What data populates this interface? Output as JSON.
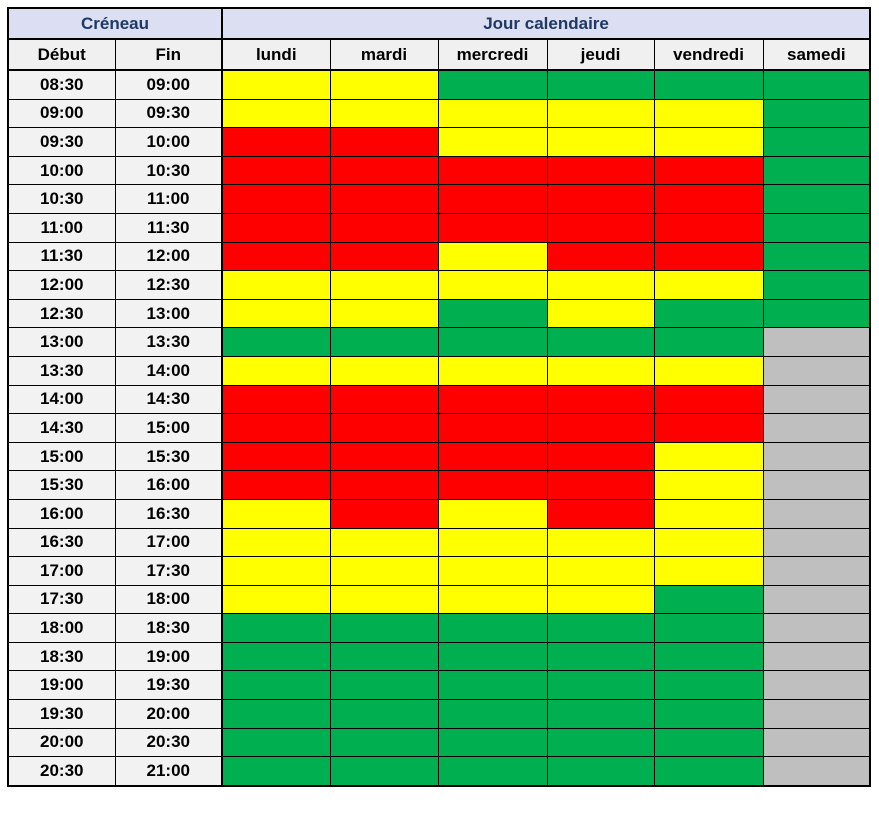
{
  "header": {
    "creneau": "Créneau",
    "jour_calendaire": "Jour calendaire",
    "debut": "Début",
    "fin": "Fin",
    "days": [
      "lundi",
      "mardi",
      "mercredi",
      "jeudi",
      "vendredi",
      "samedi"
    ]
  },
  "colors": {
    "yellow": "#FFFF00",
    "red": "#FF0000",
    "green": "#00B050",
    "gray": "#BFBFBF",
    "header_band_bg": "#DBDFF1",
    "header_band_text": "#1F3864",
    "subheader_bg": "#F0F0F0",
    "time_cell_bg": "#F2F2F2",
    "grid_border": "#000000"
  },
  "chart_data": {
    "type": "heatmap",
    "title": "Créneau / Jour calendaire availability table",
    "x_categories": [
      "lundi",
      "mardi",
      "mercredi",
      "jeudi",
      "vendredi",
      "samedi"
    ],
    "y_axis_label": "Créneau (Début–Fin)",
    "legend_colors": {
      "yellow": "#FFFF00",
      "red": "#FF0000",
      "green": "#00B050",
      "gray": "#BFBFBF"
    },
    "rows": [
      {
        "debut": "08:30",
        "fin": "09:00",
        "cells": [
          "yellow",
          "yellow",
          "green",
          "green",
          "green",
          "green"
        ]
      },
      {
        "debut": "09:00",
        "fin": "09:30",
        "cells": [
          "yellow",
          "yellow",
          "yellow",
          "yellow",
          "yellow",
          "green"
        ]
      },
      {
        "debut": "09:30",
        "fin": "10:00",
        "cells": [
          "red",
          "red",
          "yellow",
          "yellow",
          "yellow",
          "green"
        ]
      },
      {
        "debut": "10:00",
        "fin": "10:30",
        "cells": [
          "red",
          "red",
          "red",
          "red",
          "red",
          "green"
        ]
      },
      {
        "debut": "10:30",
        "fin": "11:00",
        "cells": [
          "red",
          "red",
          "red",
          "red",
          "red",
          "green"
        ]
      },
      {
        "debut": "11:00",
        "fin": "11:30",
        "cells": [
          "red",
          "red",
          "red",
          "red",
          "red",
          "green"
        ]
      },
      {
        "debut": "11:30",
        "fin": "12:00",
        "cells": [
          "red",
          "red",
          "yellow",
          "red",
          "red",
          "green"
        ]
      },
      {
        "debut": "12:00",
        "fin": "12:30",
        "cells": [
          "yellow",
          "yellow",
          "yellow",
          "yellow",
          "yellow",
          "green"
        ]
      },
      {
        "debut": "12:30",
        "fin": "13:00",
        "cells": [
          "yellow",
          "yellow",
          "green",
          "yellow",
          "green",
          "green"
        ]
      },
      {
        "debut": "13:00",
        "fin": "13:30",
        "cells": [
          "green",
          "green",
          "green",
          "green",
          "green",
          "gray"
        ]
      },
      {
        "debut": "13:30",
        "fin": "14:00",
        "cells": [
          "yellow",
          "yellow",
          "yellow",
          "yellow",
          "yellow",
          "gray"
        ]
      },
      {
        "debut": "14:00",
        "fin": "14:30",
        "cells": [
          "red",
          "red",
          "red",
          "red",
          "red",
          "gray"
        ]
      },
      {
        "debut": "14:30",
        "fin": "15:00",
        "cells": [
          "red",
          "red",
          "red",
          "red",
          "red",
          "gray"
        ]
      },
      {
        "debut": "15:00",
        "fin": "15:30",
        "cells": [
          "red",
          "red",
          "red",
          "red",
          "yellow",
          "gray"
        ]
      },
      {
        "debut": "15:30",
        "fin": "16:00",
        "cells": [
          "red",
          "red",
          "red",
          "red",
          "yellow",
          "gray"
        ]
      },
      {
        "debut": "16:00",
        "fin": "16:30",
        "cells": [
          "yellow",
          "red",
          "yellow",
          "red",
          "yellow",
          "gray"
        ]
      },
      {
        "debut": "16:30",
        "fin": "17:00",
        "cells": [
          "yellow",
          "yellow",
          "yellow",
          "yellow",
          "yellow",
          "gray"
        ]
      },
      {
        "debut": "17:00",
        "fin": "17:30",
        "cells": [
          "yellow",
          "yellow",
          "yellow",
          "yellow",
          "yellow",
          "gray"
        ]
      },
      {
        "debut": "17:30",
        "fin": "18:00",
        "cells": [
          "yellow",
          "yellow",
          "yellow",
          "yellow",
          "green",
          "gray"
        ]
      },
      {
        "debut": "18:00",
        "fin": "18:30",
        "cells": [
          "green",
          "green",
          "green",
          "green",
          "green",
          "gray"
        ]
      },
      {
        "debut": "18:30",
        "fin": "19:00",
        "cells": [
          "green",
          "green",
          "green",
          "green",
          "green",
          "gray"
        ]
      },
      {
        "debut": "19:00",
        "fin": "19:30",
        "cells": [
          "green",
          "green",
          "green",
          "green",
          "green",
          "gray"
        ]
      },
      {
        "debut": "19:30",
        "fin": "20:00",
        "cells": [
          "green",
          "green",
          "green",
          "green",
          "green",
          "gray"
        ]
      },
      {
        "debut": "20:00",
        "fin": "20:30",
        "cells": [
          "green",
          "green",
          "green",
          "green",
          "green",
          "gray"
        ]
      },
      {
        "debut": "20:30",
        "fin": "21:00",
        "cells": [
          "green",
          "green",
          "green",
          "green",
          "green",
          "gray"
        ]
      }
    ]
  }
}
